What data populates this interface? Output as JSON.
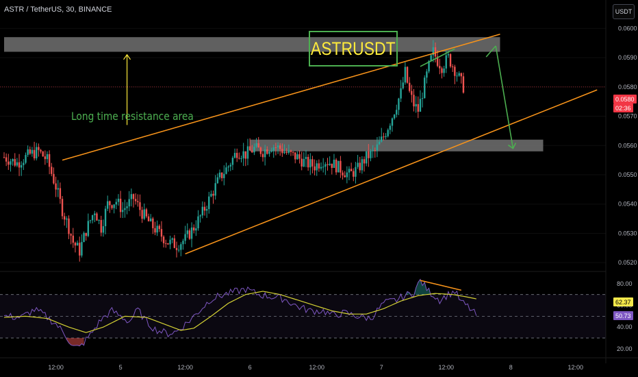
{
  "header": {
    "title": "ASTR / TetherUS, 30, BINANCE",
    "currency_button": "USDT"
  },
  "annotations": {
    "symbol_label": "ASTRUSDT",
    "resistance_note": "Long time resistance area"
  },
  "chart_data": [
    {
      "type": "candlestick",
      "title": "ASTR / TetherUS, 30, BINANCE",
      "ylim": [
        0.0517,
        0.0605
      ],
      "y_ticks": [
        "0.0600",
        "0.0590",
        "0.0580",
        "0.0570",
        "0.0560",
        "0.0550",
        "0.0540",
        "0.0530",
        "0.0520"
      ],
      "x_ticks": [
        "12:00",
        "5",
        "12:00",
        "6",
        "12:00",
        "7",
        "12:00",
        "8",
        "12:00"
      ],
      "last_price": "0.0580",
      "countdown": "02:36",
      "close_path": [
        [
          0,
          0.0556
        ],
        [
          6,
          0.0554
        ],
        [
          12,
          0.0557
        ],
        [
          16,
          0.0558
        ],
        [
          20,
          0.0555
        ],
        [
          24,
          0.0546
        ],
        [
          27,
          0.0538
        ],
        [
          30,
          0.0532
        ],
        [
          32,
          0.0527
        ],
        [
          35,
          0.0524
        ],
        [
          38,
          0.0531
        ],
        [
          42,
          0.0538
        ],
        [
          45,
          0.0532
        ],
        [
          48,
          0.054
        ],
        [
          52,
          0.0541
        ],
        [
          55,
          0.0538
        ],
        [
          60,
          0.0542
        ],
        [
          64,
          0.0537
        ],
        [
          68,
          0.0533
        ],
        [
          72,
          0.053
        ],
        [
          76,
          0.0527
        ],
        [
          80,
          0.0526
        ],
        [
          84,
          0.0528
        ],
        [
          88,
          0.0532
        ],
        [
          92,
          0.0537
        ],
        [
          96,
          0.0543
        ],
        [
          100,
          0.0549
        ],
        [
          104,
          0.0553
        ],
        [
          108,
          0.0558
        ],
        [
          112,
          0.0557
        ],
        [
          116,
          0.0559
        ],
        [
          120,
          0.0558
        ],
        [
          124,
          0.056
        ],
        [
          128,
          0.0559
        ],
        [
          132,
          0.0557
        ],
        [
          136,
          0.0556
        ],
        [
          140,
          0.0554
        ],
        [
          144,
          0.0553
        ],
        [
          148,
          0.0555
        ],
        [
          152,
          0.0554
        ],
        [
          156,
          0.0552
        ],
        [
          160,
          0.055
        ],
        [
          164,
          0.0552
        ],
        [
          168,
          0.0556
        ],
        [
          172,
          0.0558
        ],
        [
          176,
          0.0563
        ],
        [
          180,
          0.057
        ],
        [
          184,
          0.0578
        ],
        [
          186,
          0.0585
        ],
        [
          188,
          0.0578
        ],
        [
          190,
          0.0574
        ],
        [
          192,
          0.0572
        ],
        [
          194,
          0.0578
        ],
        [
          197,
          0.0587
        ],
        [
          199,
          0.0592
        ],
        [
          201,
          0.0589
        ],
        [
          203,
          0.0587
        ],
        [
          206,
          0.059
        ],
        [
          209,
          0.0586
        ],
        [
          211,
          0.0583
        ],
        [
          213,
          0.058
        ]
      ],
      "resistance_zones": [
        {
          "from_bar": 0,
          "to_bar": 230,
          "low": 0.0592,
          "high": 0.0597
        },
        {
          "from_bar": 114,
          "to_bar": 250,
          "low": 0.0558,
          "high": 0.0562
        }
      ],
      "channel_lines": [
        {
          "from": [
            27,
            0.0555
          ],
          "to": [
            230,
            0.0598
          ]
        },
        {
          "from": [
            84,
            0.0523
          ],
          "to": [
            275,
            0.0579
          ]
        }
      ],
      "projection": [
        [
          228,
          0.0594
        ],
        [
          236,
          0.0559
        ]
      ],
      "up_arrow": {
        "bar": 57,
        "from": 0.0567,
        "to": 0.0591
      },
      "divergence_line": [
        [
          193,
          0.0587
        ],
        [
          209,
          0.0593
        ]
      ]
    },
    {
      "type": "line",
      "title": "",
      "ylim": [
        13,
        90
      ],
      "y_ticks": [
        "80.00",
        "60.00",
        "40.00",
        "20.00"
      ],
      "bands": {
        "upper": 70,
        "middle": 50,
        "lower": 30
      },
      "current_values": [
        "62.37",
        "50.73"
      ],
      "rsi_path": [
        [
          0,
          50
        ],
        [
          8,
          49
        ],
        [
          14,
          56
        ],
        [
          18,
          52
        ],
        [
          24,
          43
        ],
        [
          28,
          34
        ],
        [
          32,
          22
        ],
        [
          35,
          21
        ],
        [
          40,
          33
        ],
        [
          45,
          47
        ],
        [
          50,
          55
        ],
        [
          54,
          50
        ],
        [
          58,
          45
        ],
        [
          62,
          56
        ],
        [
          66,
          45
        ],
        [
          70,
          38
        ],
        [
          76,
          34
        ],
        [
          80,
          36
        ],
        [
          86,
          46
        ],
        [
          92,
          58
        ],
        [
          96,
          66
        ],
        [
          102,
          70
        ],
        [
          108,
          73
        ],
        [
          112,
          75
        ],
        [
          118,
          70
        ],
        [
          124,
          68
        ],
        [
          130,
          66
        ],
        [
          136,
          59
        ],
        [
          142,
          55
        ],
        [
          148,
          55
        ],
        [
          152,
          51
        ],
        [
          158,
          53
        ],
        [
          164,
          50
        ],
        [
          170,
          48
        ],
        [
          176,
          62
        ],
        [
          182,
          65
        ],
        [
          186,
          69
        ],
        [
          190,
          72
        ],
        [
          193,
          83
        ],
        [
          197,
          73
        ],
        [
          202,
          65
        ],
        [
          206,
          70
        ],
        [
          209,
          73
        ],
        [
          212,
          63
        ],
        [
          215,
          59
        ],
        [
          219,
          51
        ]
      ],
      "ma_path": [
        [
          0,
          49
        ],
        [
          10,
          50
        ],
        [
          20,
          48
        ],
        [
          30,
          40
        ],
        [
          38,
          35
        ],
        [
          46,
          40
        ],
        [
          56,
          50
        ],
        [
          66,
          49
        ],
        [
          74,
          43
        ],
        [
          82,
          37
        ],
        [
          88,
          39
        ],
        [
          96,
          50
        ],
        [
          104,
          62
        ],
        [
          112,
          70
        ],
        [
          120,
          73
        ],
        [
          128,
          70
        ],
        [
          136,
          65
        ],
        [
          144,
          60
        ],
        [
          152,
          55
        ],
        [
          160,
          52
        ],
        [
          168,
          52
        ],
        [
          176,
          57
        ],
        [
          184,
          64
        ],
        [
          192,
          69
        ],
        [
          200,
          71
        ],
        [
          208,
          70
        ],
        [
          214,
          68
        ],
        [
          219,
          66
        ]
      ],
      "divergence_line": [
        [
          193,
          83
        ],
        [
          212,
          74
        ]
      ]
    }
  ],
  "colors": {
    "background": "#000000",
    "up_candle": "#26a69a",
    "down_candle": "#ef5350",
    "channel": "#f7931a",
    "arrow_green": "#4caf50",
    "label_box": "#4caf50",
    "label_text": "#ffeb3b",
    "resistance_text": "#4caf50",
    "up_arrow": "#ffeb3b",
    "zone_fill": "#808080",
    "rsi_line": "#7e57c2",
    "ma_line": "#d5d234",
    "price_tag": "#f23645",
    "rsi_tag": "#7e57c2",
    "ma_tag": "#f5e94b"
  }
}
